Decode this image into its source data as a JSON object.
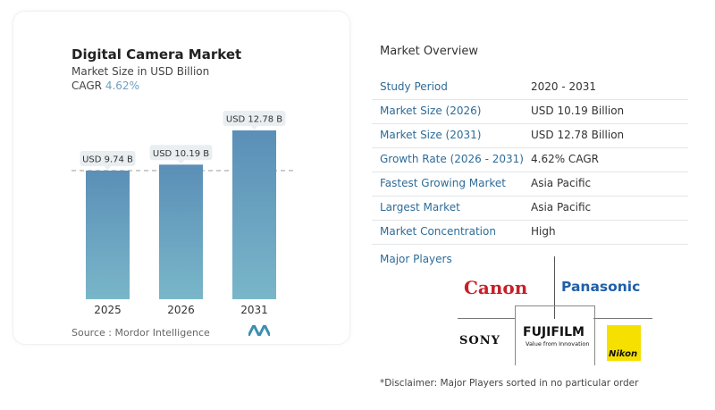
{
  "chart_data": {
    "type": "bar",
    "title": "Digital Camera Market",
    "subtitle": "Market Size in USD Billion",
    "cagr_label": "CAGR",
    "cagr_value": "4.62%",
    "categories": [
      "2025",
      "2026",
      "2031"
    ],
    "values": [
      9.74,
      10.19,
      12.78
    ],
    "data_labels": [
      "USD 9.74 B",
      "USD 10.19 B",
      "USD 12.78 B"
    ],
    "ylim": [
      0,
      13
    ],
    "reference_line": 9.74,
    "bar_color": "#5d92b8",
    "source": "Source :  Mordor Intelligence"
  },
  "overview": {
    "title": "Market Overview",
    "rows": [
      {
        "label": "Study Period",
        "value": "2020 - 2031"
      },
      {
        "label": "Market Size (2026)",
        "value": "USD 10.19 Billion"
      },
      {
        "label": "Market Size (2031)",
        "value": "USD 12.78 Billion"
      },
      {
        "label": "Growth Rate (2026 - 2031)",
        "value": "4.62% CAGR"
      },
      {
        "label": "Fastest Growing Market",
        "value": "Asia Pacific"
      },
      {
        "label": "Largest Market",
        "value": "Asia Pacific"
      },
      {
        "label": "Market Concentration",
        "value": "High"
      }
    ],
    "major_players_label": "Major Players",
    "players": {
      "canon": "Canon",
      "panasonic": "Panasonic",
      "sony": "SONY",
      "fujifilm": "FUJIFILM",
      "fujifilm_tag": "Value from Innovation",
      "nikon": "Nikon"
    },
    "disclaimer": "*Disclaimer: Major Players sorted in no particular order"
  }
}
